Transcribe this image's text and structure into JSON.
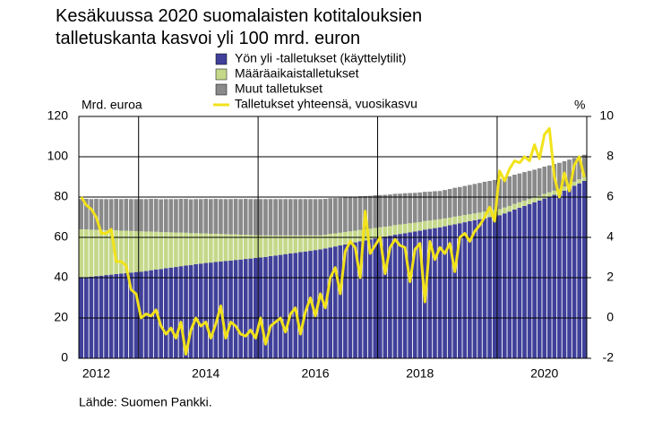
{
  "chart_data": {
    "type": "bar",
    "stacked": true,
    "title": "Kesäkuussa 2020 suomalaisten kotitalouksien talletuskanta kasvoi yli 100 mrd. euron",
    "ylabel": "Mrd. euroa",
    "y2label": "%",
    "source": "Lähde: Suomen Pankki.",
    "categories": [
      null,
      null,
      null,
      "2012",
      null,
      null,
      null,
      null,
      null,
      null,
      null,
      null,
      null,
      null,
      null,
      null,
      null,
      null,
      null,
      null,
      null,
      null,
      null,
      null,
      null,
      "2014",
      null,
      null,
      null,
      null,
      null,
      null,
      null,
      null,
      null,
      null,
      null,
      null,
      null,
      null,
      null,
      null,
      null,
      null,
      null,
      null,
      null,
      "2016",
      null,
      null,
      null,
      null,
      null,
      null,
      null,
      null,
      null,
      null,
      null,
      null,
      null,
      null,
      null,
      null,
      null,
      null,
      null,
      null,
      "2018",
      null,
      null,
      null,
      null,
      null,
      null,
      null,
      null,
      null,
      null,
      null,
      null,
      null,
      null,
      null,
      null,
      null,
      null,
      null,
      null,
      null,
      null,
      null,
      null,
      "2020",
      null,
      null,
      null,
      null,
      null,
      null,
      null,
      null
    ],
    "ylim": [
      0,
      120
    ],
    "yticks": [
      0,
      20,
      40,
      60,
      80,
      100,
      120
    ],
    "y2lim": [
      -2,
      10
    ],
    "y2ticks": [
      -2,
      0,
      2,
      4,
      6,
      8,
      10
    ],
    "grid": true,
    "series": [
      {
        "name": "Yön yli -talletukset (käyttelytilit)",
        "color": "#40409a",
        "values": [
          40,
          40.3,
          40.5,
          40.8,
          41,
          41.3,
          41.5,
          41.8,
          42,
          42.3,
          42.5,
          42.8,
          43,
          43.3,
          43.7,
          44,
          44.3,
          44.7,
          45,
          45.3,
          45.7,
          46,
          46.3,
          46.7,
          47,
          47.3,
          47.5,
          47.8,
          48,
          48.3,
          48.5,
          48.8,
          49,
          49.3,
          49.5,
          49.8,
          50,
          50.3,
          50.7,
          51,
          51.3,
          51.7,
          52,
          52.3,
          52.7,
          53,
          53.3,
          53.7,
          54,
          54.5,
          55,
          55.5,
          56,
          56.5,
          57,
          57.5,
          58,
          58.5,
          59,
          59.5,
          60,
          60.4,
          60.8,
          61.3,
          61.7,
          62.1,
          62.5,
          62.9,
          63.3,
          63.8,
          64.2,
          64.6,
          65,
          65.5,
          66,
          66.5,
          67,
          67.5,
          68,
          68.5,
          69,
          69.5,
          70,
          70.5,
          71,
          71.9,
          72.8,
          73.8,
          74.7,
          75.6,
          76.5,
          77.4,
          78.3,
          79.3,
          80.2,
          81.1,
          82,
          83.2,
          84.4,
          85.6,
          86.8,
          88
        ]
      },
      {
        "name": "Määräaikaistalletukset",
        "color": "#c5d88a",
        "values": [
          24,
          23.7,
          23.3,
          23,
          22.7,
          22.3,
          22,
          21.7,
          21.3,
          21,
          20.7,
          20.3,
          20,
          19.6,
          19.2,
          18.8,
          18.3,
          17.9,
          17.5,
          17.1,
          16.7,
          16.3,
          15.8,
          15.4,
          15,
          14.7,
          14.3,
          14,
          13.7,
          13.3,
          13,
          12.7,
          12.3,
          12,
          11.7,
          11.3,
          11,
          10.7,
          10.3,
          10,
          9.7,
          9.3,
          9,
          8.7,
          8.3,
          8,
          7.7,
          7.3,
          7,
          6.8,
          6.7,
          6.5,
          6.3,
          6.2,
          6,
          5.8,
          5.7,
          5.5,
          5.3,
          5.2,
          5,
          4.9,
          4.8,
          4.8,
          4.7,
          4.6,
          4.5,
          4.4,
          4.3,
          4.3,
          4.2,
          4.1,
          4,
          3.9,
          3.8,
          3.8,
          3.7,
          3.6,
          3.5,
          3.4,
          3.3,
          3.3,
          3.2,
          3.1,
          3,
          2.9,
          2.8,
          2.8,
          2.7,
          2.6,
          2.5,
          2.4,
          2.3,
          2.3,
          2.2,
          2.1,
          2,
          2,
          2,
          2,
          2,
          2
        ]
      },
      {
        "name": "Muut talletukset",
        "color": "#8a8a8a",
        "values": [
          15,
          15.1,
          15.2,
          15.3,
          15.3,
          15.4,
          15.5,
          15.6,
          15.7,
          15.8,
          15.8,
          15.9,
          16,
          16.1,
          16.2,
          16.3,
          16.3,
          16.4,
          16.5,
          16.6,
          16.7,
          16.8,
          16.8,
          16.9,
          17,
          17.1,
          17.2,
          17.3,
          17.3,
          17.4,
          17.5,
          17.6,
          17.7,
          17.8,
          17.8,
          17.9,
          18,
          18,
          18,
          18,
          18,
          18,
          18,
          18,
          18,
          18,
          18,
          18,
          18,
          17.8,
          17.7,
          17.5,
          17.3,
          17.2,
          17,
          16.8,
          16.7,
          16.5,
          16.3,
          16.2,
          16,
          15.8,
          15.7,
          15.5,
          15.3,
          15.2,
          15,
          14.8,
          14.7,
          14.5,
          14.3,
          14.2,
          14,
          14.1,
          14.2,
          14.3,
          14.3,
          14.4,
          14.5,
          14.6,
          14.7,
          14.8,
          14.8,
          14.9,
          15,
          14.8,
          14.7,
          14.5,
          14.3,
          14.2,
          14,
          13.8,
          13.7,
          13.5,
          13.3,
          13.2,
          13,
          12.6,
          12.2,
          11.8,
          11.4,
          11
        ]
      },
      {
        "name": "Talletukset yhteensä, vuosikasvu",
        "color": "#f2e21a",
        "type": "line",
        "axis": "y2",
        "values": [
          6,
          5.6,
          5.4,
          5,
          4.2,
          4.2,
          4.4,
          2.8,
          2.8,
          2.6,
          1.4,
          1.2,
          0,
          0.2,
          0.1,
          0.4,
          -0.4,
          -0.8,
          -0.5,
          -1,
          -0.2,
          -1.8,
          -0.6,
          0,
          -0.4,
          -0.2,
          -1,
          -0.3,
          0.6,
          -1,
          -0.2,
          -0.4,
          -0.8,
          -0.9,
          -0.6,
          -1,
          0,
          -1.3,
          -0.4,
          -0.2,
          0,
          -0.7,
          0.2,
          0.5,
          -0.8,
          0.3,
          1,
          0.1,
          1.2,
          0.5,
          2,
          2.5,
          1.2,
          3.3,
          3.8,
          3.5,
          2,
          5.3,
          3.2,
          3.6,
          4,
          2.2,
          3.5,
          3.9,
          3.6,
          3.5,
          1.8,
          3.4,
          3.7,
          0.8,
          3.8,
          2.9,
          3.5,
          3.2,
          3.7,
          2.3,
          4,
          4.2,
          3.8,
          4.3,
          4.6,
          5,
          5.5,
          4.8,
          7.3,
          6.8,
          7.4,
          7.8,
          7.7,
          8,
          7.8,
          8.6,
          7.9,
          9.1,
          9.4,
          7,
          6,
          7.2,
          6.3,
          7.6,
          8,
          7
        ]
      }
    ]
  }
}
